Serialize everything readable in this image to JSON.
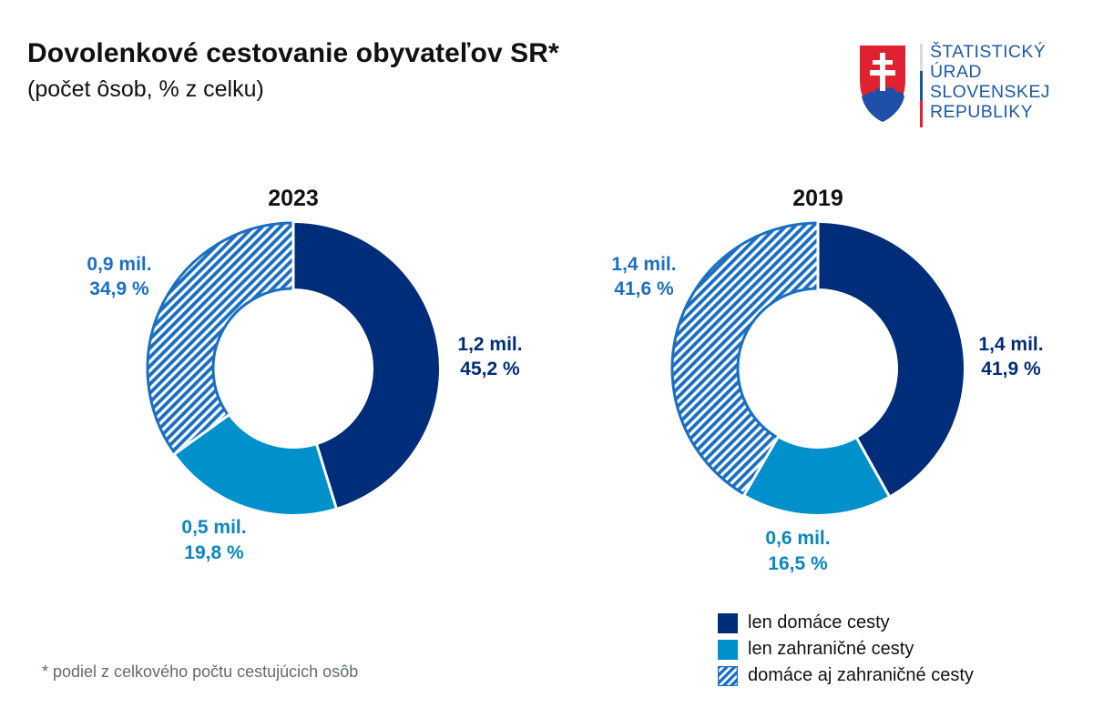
{
  "header": {
    "title": "Dovolenkové cestovanie obyvateľov SR*",
    "subtitle": "(počet ôsob, % z celku)"
  },
  "logo": {
    "icon": "slovak-coat-of-arms-icon",
    "lines": [
      "ŠTATISTICKÝ",
      "ÚRAD",
      "SLOVENSKEJ",
      "REPUBLIKY"
    ],
    "text_color": "#1f5aa8",
    "flag_colors": [
      "#d9d9d9",
      "#1f4fa8",
      "#e0212f"
    ]
  },
  "colors": {
    "domestic": "#002d7a",
    "foreign": "#0090cc",
    "both": "#1a6fc4"
  },
  "chart_data": [
    {
      "type": "pie",
      "variant": "donut",
      "title": "2023",
      "categories": [
        "len domáce cesty",
        "len zahraničné cesty",
        "domáce aj zahraničné cesty"
      ],
      "values": [
        45.2,
        19.8,
        34.9
      ],
      "persons_mil": [
        1.2,
        0.5,
        0.9
      ],
      "labels": [
        {
          "line1": "1,2 mil.",
          "line2": "45,2 %"
        },
        {
          "line1": "0,5 mil.",
          "line2": "19,8 %"
        },
        {
          "line1": "0,9 mil.",
          "line2": "34,9 %"
        }
      ],
      "start": "top",
      "direction": "clockwise"
    },
    {
      "type": "pie",
      "variant": "donut",
      "title": "2019",
      "categories": [
        "len domáce cesty",
        "len zahraničné cesty",
        "domáce aj zahraničné cesty"
      ],
      "values": [
        41.9,
        16.5,
        41.6
      ],
      "persons_mil": [
        1.4,
        0.6,
        1.4
      ],
      "labels": [
        {
          "line1": "1,4 mil.",
          "line2": "41,9 %"
        },
        {
          "line1": "0,6 mil.",
          "line2": "16,5 %"
        },
        {
          "line1": "1,4 mil.",
          "line2": "41,6 %"
        }
      ],
      "start": "top",
      "direction": "clockwise"
    }
  ],
  "legend": {
    "placement": "bottom-right",
    "items": [
      {
        "label": "len domáce cesty",
        "style": "solid",
        "color_key": "domestic"
      },
      {
        "label": "len zahraničné cesty",
        "style": "solid",
        "color_key": "foreign"
      },
      {
        "label": "domáce aj zahraničné cesty",
        "style": "hatched",
        "color_key": "both"
      }
    ]
  },
  "footnote": "* podiel z celkového počtu cestujúcich osôb"
}
